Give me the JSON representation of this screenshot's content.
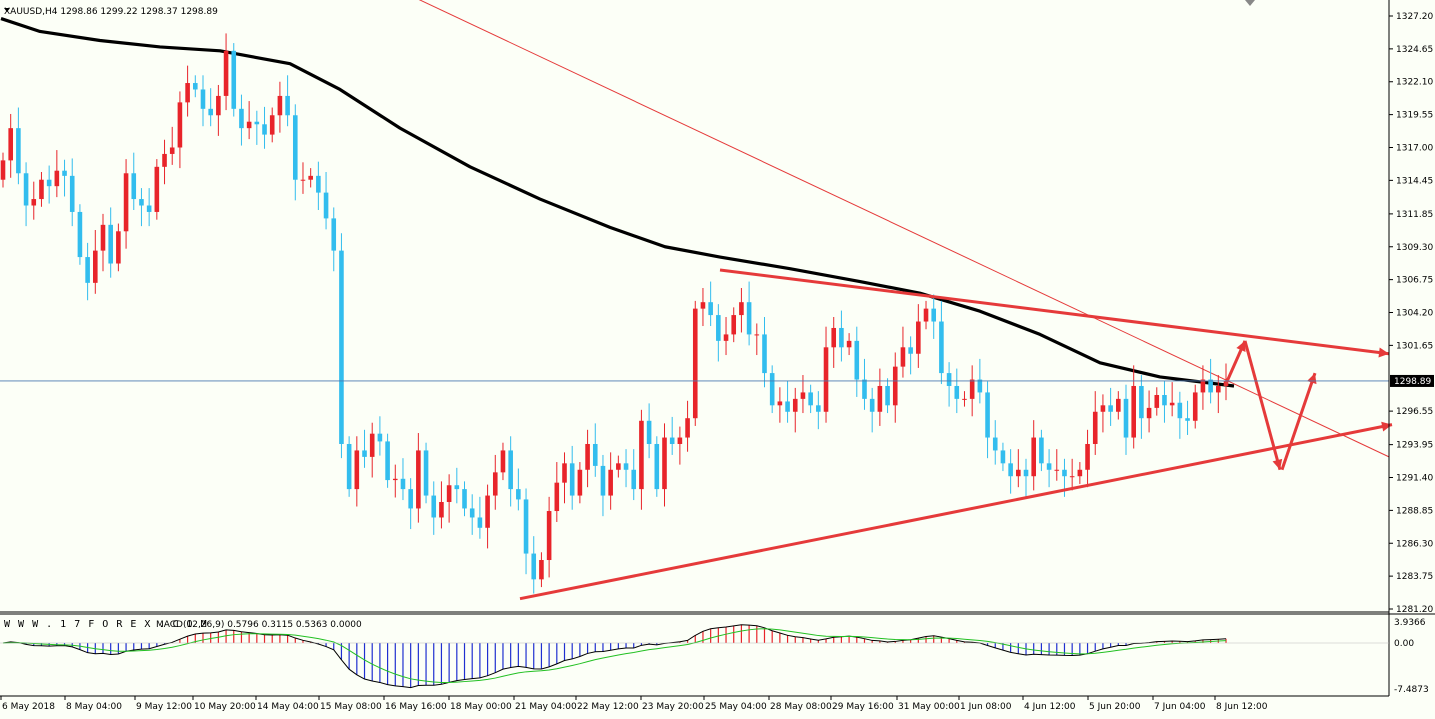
{
  "header": {
    "symbol_line": "XAUUSD,H4  1298.86 1299.22 1298.37 1298.89"
  },
  "sub_header": {
    "watermark": "W W W . 1 7 F O R E X . C O M",
    "macd_line": "MACD(12,26,9) 0.5796 0.3115 0.5363 0.0000"
  },
  "colors": {
    "background": "#FCFFF7",
    "bull": "#E8242A",
    "bear": "#32BDEE",
    "ma": "#000000",
    "trendline": "#E53A3A",
    "current_price_line": "#4A78B0",
    "macd_signal": "#22C022"
  },
  "chart_data": [
    {
      "type": "candlestick",
      "title": "XAUUSD,H4",
      "ohlc_header": {
        "open": 1298.86,
        "high": 1299.22,
        "low": 1298.37,
        "close": 1298.89
      },
      "ylim": [
        1280.0,
        1328.5
      ],
      "y_ticks": [
        "1327.20",
        "1324.65",
        "1322.10",
        "1319.55",
        "1317.00",
        "1314.45",
        "1311.85",
        "1309.30",
        "1306.75",
        "1304.20",
        "1301.65",
        "1296.55",
        "1293.95",
        "1291.40",
        "1288.85",
        "1286.30",
        "1283.75",
        "1281.20"
      ],
      "current_price": "1298.89",
      "x_ticks": [
        "6 May 2018",
        "8 May 04:00",
        "9 May 12:00",
        "10 May 20:00",
        "14 May 04:00",
        "15 May 08:00",
        "16 May 16:00",
        "18 May 00:00",
        "21 May 04:00",
        "22 May 12:00",
        "23 May 20:00",
        "25 May 04:00",
        "28 May 08:00",
        "29 May 16:00",
        "31 May 00:00",
        "1 Jun 08:00",
        "4 Jun 12:00",
        "5 Jun 20:00",
        "7 Jun 04:00",
        "8 Jun 12:00"
      ],
      "candles_close": [
        1316.0,
        1318.5,
        1315.0,
        1312.5,
        1313.0,
        1314.5,
        1314.0,
        1315.2,
        1314.8,
        1312.0,
        1308.5,
        1306.5,
        1309.0,
        1311.0,
        1308.0,
        1310.5,
        1315.0,
        1313.0,
        1312.5,
        1312.0,
        1315.5,
        1316.5,
        1317.0,
        1320.5,
        1322.0,
        1321.5,
        1320.0,
        1319.5,
        1321.0,
        1324.5,
        1320.0,
        1318.5,
        1319.0,
        1318.8,
        1318.0,
        1319.5,
        1321.0,
        1319.5,
        1314.5,
        1314.5,
        1314.8,
        1313.5,
        1311.5,
        1309.0,
        1294.0,
        1290.5,
        1293.5,
        1293.0,
        1294.8,
        1294.2,
        1291.2,
        1291.3,
        1290.5,
        1289.0,
        1293.5,
        1290.0,
        1288.3,
        1289.5,
        1290.8,
        1290.5,
        1289.0,
        1288.3,
        1287.5,
        1290.0,
        1291.8,
        1293.5,
        1290.5,
        1289.7,
        1285.5,
        1283.5,
        1285.0,
        1288.8,
        1291.0,
        1292.5,
        1290.0,
        1292.0,
        1294.0,
        1292.3,
        1290.0,
        1292.0,
        1292.5,
        1292.0,
        1290.5,
        1295.8,
        1294.0,
        1290.5,
        1294.5,
        1294.0,
        1294.5,
        1296.0,
        1304.5,
        1305.0,
        1304.0,
        1302.0,
        1302.5,
        1304.0,
        1305.0,
        1302.5,
        1302.5,
        1299.5,
        1297.0,
        1297.3,
        1296.5,
        1297.5,
        1298.0,
        1297.0,
        1296.5,
        1301.5,
        1303.0,
        1301.5,
        1302.0,
        1299.0,
        1297.5,
        1296.5,
        1298.5,
        1297.0,
        1300.0,
        1301.5,
        1301.0,
        1303.5,
        1304.5,
        1303.5,
        1299.5,
        1298.5,
        1297.5,
        1297.5,
        1299.0,
        1298.0,
        1294.5,
        1293.5,
        1292.5,
        1291.5,
        1292.0,
        1291.5,
        1294.5,
        1292.5,
        1292.0,
        1292.0,
        1291.5,
        1291.5,
        1292.0,
        1294.0,
        1296.5,
        1297.0,
        1296.5,
        1297.5,
        1294.5,
        1298.5,
        1296.0,
        1296.8,
        1297.8,
        1297.0,
        1297.2,
        1296.0,
        1295.8,
        1298.0,
        1299.0,
        1298.0,
        1298.5,
        1298.89
      ],
      "moving_average_points": [
        [
          1,
          1327.0
        ],
        [
          40,
          1326.0
        ],
        [
          100,
          1325.3
        ],
        [
          160,
          1324.8
        ],
        [
          220,
          1324.5
        ],
        [
          290,
          1323.5
        ],
        [
          340,
          1321.5
        ],
        [
          400,
          1318.5
        ],
        [
          470,
          1315.5
        ],
        [
          540,
          1313.0
        ],
        [
          610,
          1310.8
        ],
        [
          665,
          1309.3
        ],
        [
          720,
          1308.5
        ],
        [
          790,
          1307.6
        ],
        [
          860,
          1306.6
        ],
        [
          920,
          1305.7
        ],
        [
          980,
          1304.3
        ],
        [
          1040,
          1302.5
        ],
        [
          1100,
          1300.3
        ],
        [
          1160,
          1299.2
        ],
        [
          1234,
          1298.5
        ]
      ],
      "trend_lines": [
        {
          "from": [
            "time",
            1331.0
          ],
          "to": [
            "time",
            1293.0
          ],
          "style": "thin"
        },
        {
          "from": [
            "time",
            1307.5
          ],
          "to": [
            "time",
            1301.0
          ],
          "style": "thick"
        },
        {
          "from": [
            "time",
            1282.0
          ],
          "to": [
            "time",
            1295.5
          ],
          "style": "thick"
        },
        {
          "from": [
            "time",
            1298.5
          ],
          "to": [
            "time",
            1302.0
          ],
          "style": "arrow"
        },
        {
          "from": [
            "time",
            1302.0
          ],
          "to": [
            "time",
            1292.0
          ],
          "style": "arrow"
        },
        {
          "from": [
            "time",
            1292.0
          ],
          "to": [
            "time",
            1299.5
          ],
          "style": "arrow"
        }
      ]
    },
    {
      "type": "histogram",
      "title": "MACD(12,26,9)",
      "values_header": [
        0.5796,
        0.3115,
        0.5363,
        0.0
      ],
      "ylim": [
        -7.4873,
        3.9366
      ],
      "y_ticks": [
        "3.9366",
        "0.00",
        "-7.4873"
      ],
      "histogram_hint": "positive early, negative mid (15-18 May), positive late May, negative early June, positive at end",
      "series": [
        {
          "name": "MACD",
          "kind": "line"
        },
        {
          "name": "Signal",
          "kind": "line"
        }
      ]
    }
  ]
}
